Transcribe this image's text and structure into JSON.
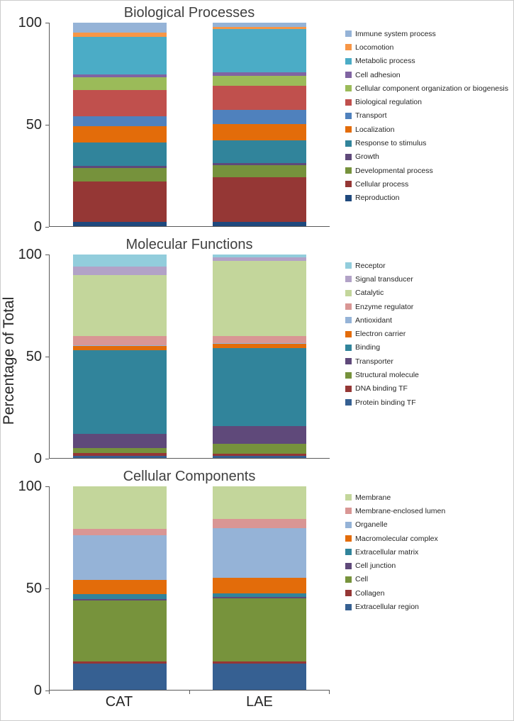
{
  "figure": {
    "ylabel": "Percentage of Total",
    "categories": [
      "CAT",
      "LAE"
    ]
  },
  "chart_data": [
    {
      "type": "bar",
      "stacked": true,
      "title": "Biological Processes",
      "categories": [
        "CAT",
        "LAE"
      ],
      "ylim": [
        0,
        100
      ],
      "ytick_labels": [
        "100",
        "50",
        "0"
      ],
      "grid": false,
      "legend_position": "right",
      "series": [
        {
          "name": "Immune system process",
          "color": "#95B3D7",
          "values": [
            5,
            2
          ]
        },
        {
          "name": "Locomotion",
          "color": "#F79646",
          "values": [
            2,
            1
          ]
        },
        {
          "name": "Metabolic process",
          "color": "#4BACC6",
          "values": [
            18.5,
            21.5
          ]
        },
        {
          "name": "Cell adhesion",
          "color": "#8064A2",
          "values": [
            1.5,
            1.5
          ]
        },
        {
          "name": "Cellular component organization or biogenesis",
          "color": "#9BBB59",
          "values": [
            6,
            5
          ]
        },
        {
          "name": "Biological regulation",
          "color": "#C0504D",
          "values": [
            13,
            12
          ]
        },
        {
          "name": "Transport",
          "color": "#4F81BD",
          "values": [
            5,
            7
          ]
        },
        {
          "name": "Localization",
          "color": "#E36C0A",
          "values": [
            8,
            8
          ]
        },
        {
          "name": "Response to stimulus",
          "color": "#31849B",
          "values": [
            11.5,
            11
          ]
        },
        {
          "name": "Growth",
          "color": "#5F497A",
          "values": [
            1,
            1
          ]
        },
        {
          "name": "Developmental process",
          "color": "#76923C",
          "values": [
            6.5,
            6
          ]
        },
        {
          "name": "Cellular process",
          "color": "#953735",
          "values": [
            20,
            22
          ]
        },
        {
          "name": "Reproduction",
          "color": "#1F497D",
          "values": [
            2,
            2
          ]
        }
      ]
    },
    {
      "type": "bar",
      "stacked": true,
      "title": "Molecular Functions",
      "categories": [
        "CAT",
        "LAE"
      ],
      "ylim": [
        0,
        100
      ],
      "ytick_labels": [
        "100",
        "50",
        "0"
      ],
      "grid": false,
      "legend_position": "right",
      "series": [
        {
          "name": "Receptor",
          "color": "#92CDDC",
          "values": [
            6,
            1.5
          ]
        },
        {
          "name": "Signal transducer",
          "color": "#B2A2C7",
          "values": [
            4,
            1.5
          ]
        },
        {
          "name": "Catalytic",
          "color": "#C3D69B",
          "values": [
            30,
            37
          ]
        },
        {
          "name": "Enzyme regulator",
          "color": "#D99694",
          "values": [
            4.5,
            3.5
          ]
        },
        {
          "name": "Antioxidant",
          "color": "#95B3D7",
          "values": [
            0.5,
            0.5
          ]
        },
        {
          "name": "Electron carrier",
          "color": "#E36C0A",
          "values": [
            2,
            2
          ]
        },
        {
          "name": "Binding",
          "color": "#31849B",
          "values": [
            41,
            38.5
          ]
        },
        {
          "name": "Transporter",
          "color": "#5F497A",
          "values": [
            7,
            8.5
          ]
        },
        {
          "name": "Structural molecule",
          "color": "#76923C",
          "values": [
            2.5,
            5
          ]
        },
        {
          "name": "DNA binding TF",
          "color": "#953735",
          "values": [
            1.5,
            1
          ]
        },
        {
          "name": "Protein binding TF",
          "color": "#366092",
          "values": [
            1,
            1
          ]
        }
      ]
    },
    {
      "type": "bar",
      "stacked": true,
      "title": "Cellular Components",
      "categories": [
        "CAT",
        "LAE"
      ],
      "ylim": [
        0,
        100
      ],
      "ytick_labels": [
        "100",
        "50",
        "0"
      ],
      "grid": false,
      "legend_position": "right",
      "series": [
        {
          "name": "Membrane",
          "color": "#C3D69B",
          "values": [
            21,
            16
          ]
        },
        {
          "name": "Membrane-enclosed lumen",
          "color": "#D99694",
          "values": [
            3,
            4.5
          ]
        },
        {
          "name": "Organelle",
          "color": "#95B3D7",
          "values": [
            22,
            24.5
          ]
        },
        {
          "name": "Macromolecular complex",
          "color": "#E36C0A",
          "values": [
            7,
            7.5
          ]
        },
        {
          "name": "Extracellular matrix",
          "color": "#31849B",
          "values": [
            2.5,
            2
          ]
        },
        {
          "name": "Cell junction",
          "color": "#5F497A",
          "values": [
            0.5,
            0.5
          ]
        },
        {
          "name": "Cell",
          "color": "#77933C",
          "values": [
            30,
            31
          ]
        },
        {
          "name": "Collagen",
          "color": "#953735",
          "values": [
            1,
            1
          ]
        },
        {
          "name": "Extracellular region",
          "color": "#366092",
          "values": [
            13,
            13
          ]
        }
      ]
    }
  ]
}
